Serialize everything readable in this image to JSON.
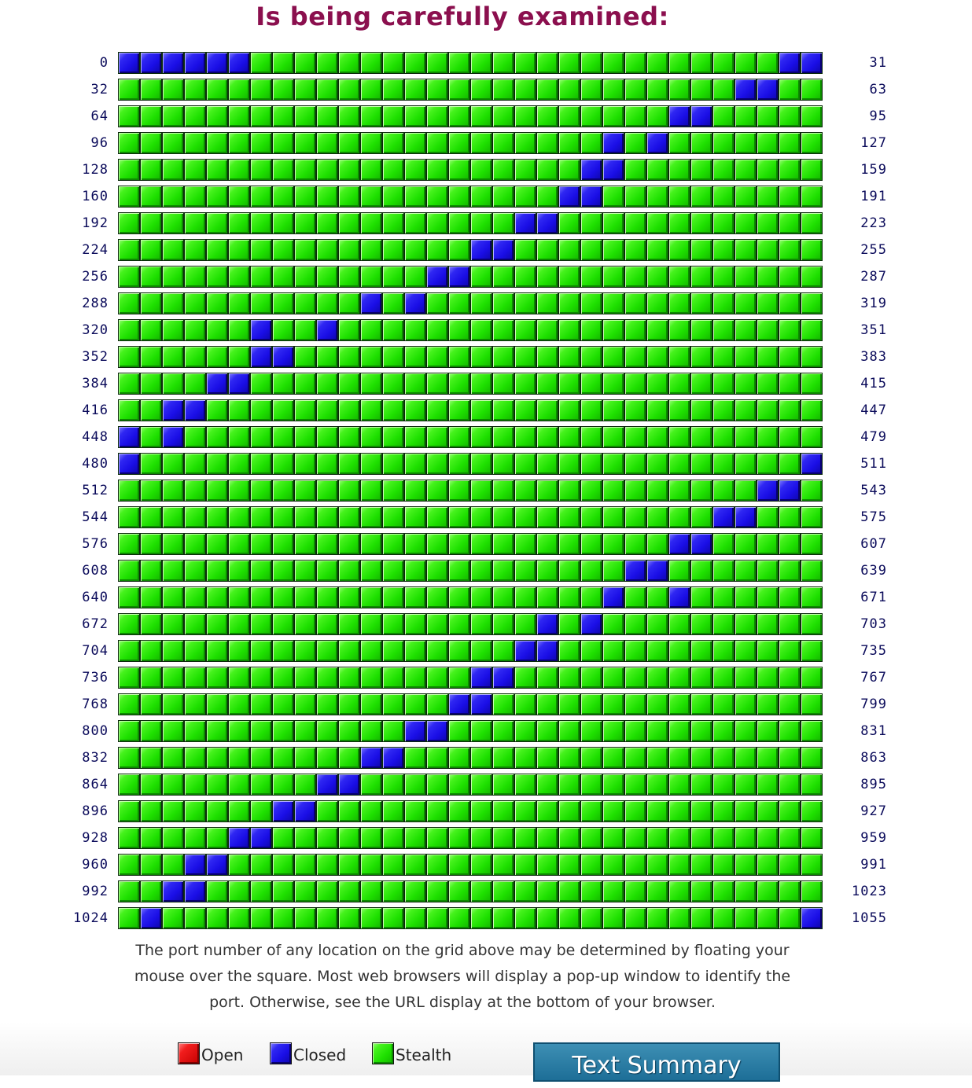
{
  "title": "Is being carefully examined:",
  "grid": {
    "columns": 32,
    "rows": [
      {
        "start": "0",
        "end": "31",
        "closed": [
          0,
          1,
          2,
          3,
          4,
          5,
          30,
          31
        ]
      },
      {
        "start": "32",
        "end": "63",
        "closed": [
          28,
          29
        ]
      },
      {
        "start": "64",
        "end": "95",
        "closed": [
          25,
          26
        ]
      },
      {
        "start": "96",
        "end": "127",
        "closed": [
          22,
          24
        ]
      },
      {
        "start": "128",
        "end": "159",
        "closed": [
          21,
          22
        ]
      },
      {
        "start": "160",
        "end": "191",
        "closed": [
          20,
          21
        ]
      },
      {
        "start": "192",
        "end": "223",
        "closed": [
          18,
          19
        ]
      },
      {
        "start": "224",
        "end": "255",
        "closed": [
          16,
          17
        ]
      },
      {
        "start": "256",
        "end": "287",
        "closed": [
          14,
          15
        ]
      },
      {
        "start": "288",
        "end": "319",
        "closed": [
          11,
          13
        ]
      },
      {
        "start": "320",
        "end": "351",
        "closed": [
          6,
          9
        ]
      },
      {
        "start": "352",
        "end": "383",
        "closed": [
          6,
          7
        ]
      },
      {
        "start": "384",
        "end": "415",
        "closed": [
          4,
          5
        ]
      },
      {
        "start": "416",
        "end": "447",
        "closed": [
          2,
          3
        ]
      },
      {
        "start": "448",
        "end": "479",
        "closed": [
          0,
          2
        ]
      },
      {
        "start": "480",
        "end": "511",
        "closed": [
          0,
          31
        ]
      },
      {
        "start": "512",
        "end": "543",
        "closed": [
          29,
          30
        ]
      },
      {
        "start": "544",
        "end": "575",
        "closed": [
          27,
          28
        ]
      },
      {
        "start": "576",
        "end": "607",
        "closed": [
          25,
          26
        ]
      },
      {
        "start": "608",
        "end": "639",
        "closed": [
          23,
          24
        ]
      },
      {
        "start": "640",
        "end": "671",
        "closed": [
          22,
          25
        ]
      },
      {
        "start": "672",
        "end": "703",
        "closed": [
          19,
          21
        ]
      },
      {
        "start": "704",
        "end": "735",
        "closed": [
          18,
          19
        ]
      },
      {
        "start": "736",
        "end": "767",
        "closed": [
          16,
          17
        ]
      },
      {
        "start": "768",
        "end": "799",
        "closed": [
          15,
          16
        ]
      },
      {
        "start": "800",
        "end": "831",
        "closed": [
          13,
          14
        ]
      },
      {
        "start": "832",
        "end": "863",
        "closed": [
          11,
          12
        ]
      },
      {
        "start": "864",
        "end": "895",
        "closed": [
          9,
          10
        ]
      },
      {
        "start": "896",
        "end": "927",
        "closed": [
          7,
          8
        ]
      },
      {
        "start": "928",
        "end": "959",
        "closed": [
          5,
          6
        ]
      },
      {
        "start": "960",
        "end": "991",
        "closed": [
          3,
          4
        ]
      },
      {
        "start": "992",
        "end": "1023",
        "closed": [
          2,
          3
        ]
      },
      {
        "start": "1024",
        "end": "1055",
        "closed": [
          1,
          31
        ]
      }
    ]
  },
  "note": "The port number of any location on the grid above may be determined by floating your mouse over the square. Most web browsers will display a pop-up window to identify the port. Otherwise, see the URL display at the bottom of your browser.",
  "legend": {
    "open": "Open",
    "closed": "Closed",
    "stealth": "Stealth"
  },
  "button": {
    "label": "Text Summary"
  }
}
